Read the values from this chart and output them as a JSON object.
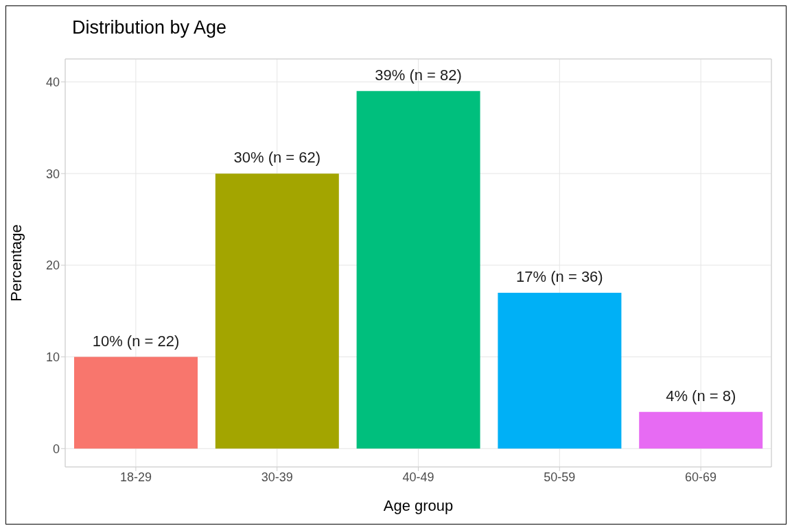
{
  "chart_data": {
    "type": "bar",
    "title": "Distribution by Age",
    "xlabel": "Age group",
    "ylabel": "Percentage",
    "categories": [
      "18-29",
      "30-39",
      "40-49",
      "50-59",
      "60-69"
    ],
    "values": [
      10,
      30,
      39,
      17,
      4
    ],
    "colors": [
      "#f8766d",
      "#a3a500",
      "#00bf7d",
      "#00b0f6",
      "#e76bf3"
    ],
    "value_labels": [
      "10% (n = 22)",
      "30% (n = 62)",
      "39% (n = 82)",
      "17% (n = 36)",
      "4% (n = 8)"
    ],
    "ylim": [
      -2,
      42.5
    ],
    "yticks": [
      0,
      10,
      20,
      30,
      40
    ],
    "grid": true
  }
}
